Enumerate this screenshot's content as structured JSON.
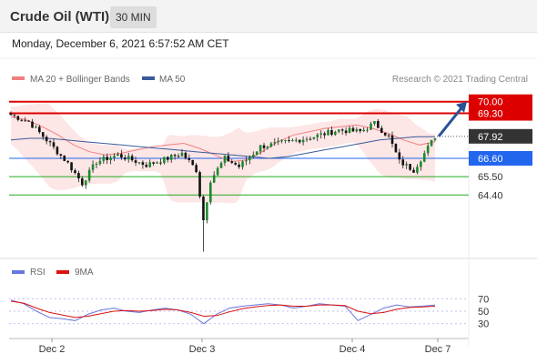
{
  "header": {
    "title": "Crude Oil (WTI)",
    "timeframe": "30 MIN"
  },
  "subheader": {
    "datetime": "Monday, December 6, 2021 6:57:52 AM CET"
  },
  "legend": {
    "ma20": {
      "label": "MA 20 + Bollinger Bands",
      "color": "#f08080"
    },
    "ma50": {
      "label": "MA 50",
      "color": "#3a5a9a"
    },
    "credit": "Research © 2021 Trading Central"
  },
  "rsi_legend": {
    "rsi": {
      "label": "RSI",
      "color": "#6677dd"
    },
    "ma9": {
      "label": "9MA",
      "color": "#dd1111"
    }
  },
  "chart_data": [
    {
      "type": "candlestick",
      "ylim": [
        60.7,
        70.75
      ],
      "levels": [
        {
          "value": 70.0,
          "label": "70.00",
          "kind": "resistance",
          "color": "#dd0000"
        },
        {
          "value": 69.3,
          "label": "69.30",
          "kind": "resistance",
          "color": "#dd0000"
        },
        {
          "value": 67.92,
          "label": "67.92",
          "kind": "last",
          "color": "#333333"
        },
        {
          "value": 66.6,
          "label": "66.60",
          "kind": "pivot",
          "color": "#2266ee"
        },
        {
          "value": 65.5,
          "label": "65.50",
          "kind": "support",
          "color": "#22aa22"
        },
        {
          "value": 64.4,
          "label": "64.40",
          "kind": "support",
          "color": "#22aa22"
        }
      ],
      "series": [
        {
          "name": "MA 20 + Bollinger Bands",
          "color": "#f08080",
          "values": [
            69.1,
            68.9,
            68.5,
            68.0,
            67.4,
            67.0,
            66.8,
            66.9,
            67.1,
            67.3,
            67.4,
            67.5,
            67.2,
            66.8,
            66.4,
            66.5,
            67.0,
            67.6,
            68.0,
            68.2,
            68.4,
            68.5,
            68.6,
            68.4,
            68.1,
            67.7,
            67.4,
            67.6
          ]
        },
        {
          "name": "MA 50",
          "color": "#3a5a9a",
          "values": [
            67.7,
            67.8,
            67.8,
            67.7,
            67.6,
            67.5,
            67.4,
            67.3,
            67.2,
            67.1,
            67.0,
            66.9,
            66.8,
            66.7,
            66.6,
            66.7,
            66.9,
            67.1,
            67.3,
            67.5,
            67.7,
            67.8,
            67.9,
            67.9
          ]
        }
      ],
      "x_ticks": [
        "Dec 2",
        "Dec 3",
        "Dec 4",
        "Dec 7"
      ],
      "forecast_arrow": {
        "from": 67.92,
        "to": 70.0
      },
      "last_price": 67.92
    },
    {
      "type": "line",
      "yticks": [
        70,
        50,
        30
      ],
      "ylim": [
        15,
        85
      ],
      "series": [
        {
          "name": "RSI",
          "color": "#6677dd",
          "values": [
            68,
            62,
            50,
            40,
            38,
            35,
            45,
            52,
            55,
            50,
            48,
            52,
            55,
            52,
            45,
            30,
            45,
            55,
            58,
            60,
            62,
            60,
            55,
            58,
            62,
            60,
            58,
            35,
            45,
            55,
            60,
            57,
            58,
            60
          ]
        },
        {
          "name": "9MA",
          "color": "#dd1111",
          "values": [
            66,
            63,
            55,
            48,
            44,
            40,
            42,
            46,
            50,
            51,
            50,
            51,
            53,
            52,
            48,
            42,
            43,
            49,
            54,
            57,
            59,
            60,
            58,
            58,
            60,
            60,
            59,
            50,
            46,
            48,
            53,
            56,
            57,
            58
          ]
        }
      ]
    }
  ]
}
